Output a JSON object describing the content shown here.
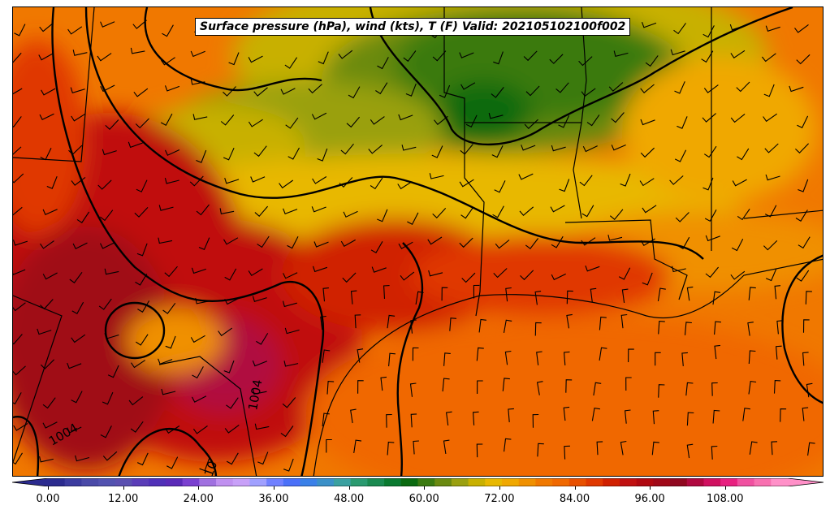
{
  "title": "Surface pressure (hPa), wind (kts), T (F) Valid: 202105102100f002",
  "isobar_labels": [
    "1004",
    "1004",
    "10"
  ],
  "colorbar": {
    "min": 0,
    "max": 118,
    "step": 2,
    "tick_labels": [
      "0.00",
      "12.00",
      "24.00",
      "36.00",
      "48.00",
      "60.00",
      "72.00",
      "84.00",
      "96.00",
      "108.00"
    ],
    "colors": [
      "#2b2b8f",
      "#3b3b9f",
      "#4a4aa8",
      "#5252b0",
      "#5a4fb0",
      "#5a3db8",
      "#5030b8",
      "#5a2ab8",
      "#7a40d0",
      "#a070e0",
      "#c090f0",
      "#c8a0f8",
      "#a0a0ff",
      "#7080ff",
      "#4a70f8",
      "#3a80e8",
      "#3a90c8",
      "#3aa0a0",
      "#2a9a70",
      "#1a8a50",
      "#0a7a30",
      "#0a6a10",
      "#3a7a10",
      "#6a8a10",
      "#9aa010",
      "#c8b000",
      "#e8b800",
      "#f0a800",
      "#f09000",
      "#f07800",
      "#f06800",
      "#e85000",
      "#e03800",
      "#d02000",
      "#c01010",
      "#b00810",
      "#a00818",
      "#900820",
      "#b00840",
      "#d01060",
      "#e82080",
      "#f050a0",
      "#f870b0",
      "#ff90c8"
    ]
  },
  "legend_colors_note": "temperature fill colormap"
}
